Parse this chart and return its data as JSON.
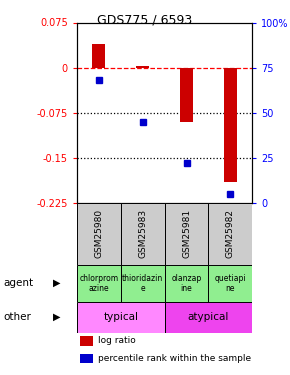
{
  "title": "GDS775 / 6593",
  "samples": [
    "GSM25980",
    "GSM25983",
    "GSM25981",
    "GSM25982"
  ],
  "log_ratios": [
    0.04,
    0.002,
    -0.09,
    -0.19
  ],
  "percentile_ranks": [
    68,
    45,
    22,
    5
  ],
  "ylim_left": [
    -0.225,
    0.075
  ],
  "ylim_right": [
    0,
    100
  ],
  "yticks_left": [
    0.075,
    0,
    -0.075,
    -0.15,
    -0.225
  ],
  "yticks_right": [
    100,
    75,
    50,
    25,
    0
  ],
  "dotted_lines": [
    -0.075,
    -0.15
  ],
  "agent_labels": [
    "chlorprom\nazine",
    "thioridazin\ne",
    "olanzap\nine",
    "quetiapi\nne"
  ],
  "agent_color": "#90EE90",
  "other_groups": [
    {
      "label": "typical",
      "cols": [
        0,
        1
      ],
      "color": "#FF88FF"
    },
    {
      "label": "atypical",
      "cols": [
        2,
        3
      ],
      "color": "#EE44EE"
    }
  ],
  "bar_color": "#CC0000",
  "dot_color": "#0000CC",
  "background_color": "#ffffff",
  "gsm_bg": "#cccccc"
}
